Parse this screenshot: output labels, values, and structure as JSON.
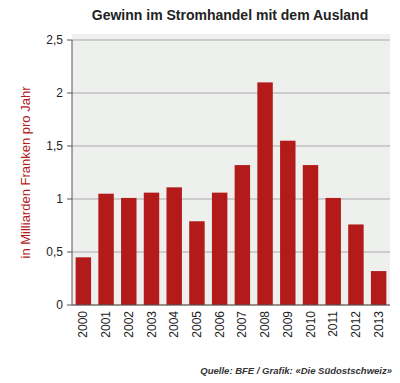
{
  "chart_data": {
    "type": "bar",
    "title": "Gewinn im Stromhandel mit dem Ausland",
    "y_label": "in Milliarden Franken pro Jahr",
    "source": "Quelle: BFE / Grafik: «Die Südostschweiz»",
    "categories": [
      "2000",
      "2001",
      "2002",
      "2003",
      "2004",
      "2005",
      "2006",
      "2007",
      "2008",
      "2009",
      "2010",
      "2011",
      "2012",
      "2013"
    ],
    "values": [
      0.45,
      1.05,
      1.01,
      1.06,
      1.11,
      0.79,
      1.06,
      1.32,
      2.1,
      1.55,
      1.32,
      1.01,
      0.76,
      0.32
    ],
    "color": "#b31b1b",
    "ylim": [
      0,
      2.5
    ],
    "yticks": [
      0,
      {
        "value": 0.5,
        "label": "0,5"
      },
      1,
      {
        "value": 1.5,
        "label": "1,5"
      },
      2,
      {
        "value": 2.5,
        "label": "2,5"
      }
    ],
    "grid": true
  }
}
